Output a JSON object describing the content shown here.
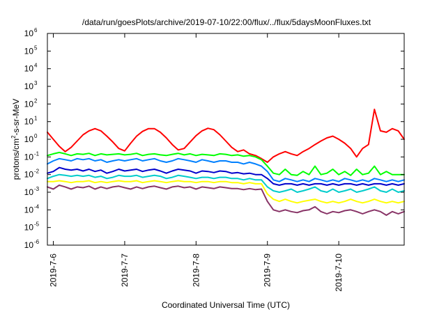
{
  "chart_data": {
    "type": "line",
    "title": "/data/run/goesPlots/archive/2019-07-10/22:00/flux/../flux/5daysMoonFluxes.txt",
    "xlabel": "Coordinated Universal Time (UTC)",
    "ylabel": "protons/cm2-s-sr-MeV",
    "ylabel_parts": {
      "pre": "protons/cm",
      "sup": "2",
      "post": "-s-sr-MeV"
    },
    "yscale": "log",
    "ylim": [
      1e-06,
      1000000.0
    ],
    "y_ticks": [
      {
        "base": "10",
        "exp": "-6",
        "value": 1e-06
      },
      {
        "base": "10",
        "exp": "-5",
        "value": 1e-05
      },
      {
        "base": "10",
        "exp": "-4",
        "value": 0.0001
      },
      {
        "base": "10",
        "exp": "-3",
        "value": 0.001
      },
      {
        "base": "10",
        "exp": "-2",
        "value": 0.01
      },
      {
        "base": "10",
        "exp": "-1",
        "value": 0.1
      },
      {
        "base": "10",
        "exp": "0",
        "value": 1
      },
      {
        "base": "10",
        "exp": "1",
        "value": 10
      },
      {
        "base": "10",
        "exp": "2",
        "value": 100
      },
      {
        "base": "10",
        "exp": "3",
        "value": 1000
      },
      {
        "base": "10",
        "exp": "4",
        "value": 10000
      },
      {
        "base": "10",
        "exp": "5",
        "value": 100000
      },
      {
        "base": "10",
        "exp": "6",
        "value": 1000000
      }
    ],
    "xlim": [
      "2019-07-05T22:00",
      "2019-07-10T22:00"
    ],
    "x_ticks": [
      {
        "label": "2019-7-6",
        "value": "2019-07-06T00:00"
      },
      {
        "label": "2019-7-7",
        "value": "2019-07-07T00:00"
      },
      {
        "label": "2019-7-8",
        "value": "2019-07-08T00:00"
      },
      {
        "label": "2019-7-9",
        "value": "2019-07-09T00:00"
      },
      {
        "label": "2019-7-10",
        "value": "2019-07-10T00:00"
      }
    ],
    "grid": false,
    "legend": "none",
    "x": [
      "2019-07-05T22:00",
      "2019-07-06T00:00",
      "2019-07-06T02:00",
      "2019-07-06T04:00",
      "2019-07-06T06:00",
      "2019-07-06T08:00",
      "2019-07-06T10:00",
      "2019-07-06T12:00",
      "2019-07-06T14:00",
      "2019-07-06T16:00",
      "2019-07-06T18:00",
      "2019-07-06T20:00",
      "2019-07-06T22:00",
      "2019-07-07T00:00",
      "2019-07-07T02:00",
      "2019-07-07T04:00",
      "2019-07-07T06:00",
      "2019-07-07T08:00",
      "2019-07-07T10:00",
      "2019-07-07T12:00",
      "2019-07-07T14:00",
      "2019-07-07T16:00",
      "2019-07-07T18:00",
      "2019-07-07T20:00",
      "2019-07-07T22:00",
      "2019-07-08T00:00",
      "2019-07-08T02:00",
      "2019-07-08T04:00",
      "2019-07-08T06:00",
      "2019-07-08T08:00",
      "2019-07-08T10:00",
      "2019-07-08T12:00",
      "2019-07-08T14:00",
      "2019-07-08T16:00",
      "2019-07-08T18:00",
      "2019-07-08T20:00",
      "2019-07-08T22:00",
      "2019-07-09T00:00",
      "2019-07-09T02:00",
      "2019-07-09T04:00",
      "2019-07-09T06:00",
      "2019-07-09T08:00",
      "2019-07-09T10:00",
      "2019-07-09T12:00",
      "2019-07-09T14:00",
      "2019-07-09T16:00",
      "2019-07-09T18:00",
      "2019-07-09T20:00",
      "2019-07-09T22:00",
      "2019-07-10T00:00",
      "2019-07-10T02:00",
      "2019-07-10T04:00",
      "2019-07-10T06:00",
      "2019-07-10T08:00",
      "2019-07-10T10:00",
      "2019-07-10T12:00",
      "2019-07-10T14:00",
      "2019-07-10T16:00",
      "2019-07-10T18:00",
      "2019-07-10T20:00",
      "2019-07-10T22:00"
    ],
    "series": [
      {
        "color": "#ff0000",
        "values": [
          2.5,
          1.0,
          0.4,
          0.2,
          0.35,
          0.8,
          1.8,
          3.0,
          4.0,
          3.0,
          1.5,
          0.7,
          0.3,
          0.22,
          0.6,
          1.5,
          2.8,
          4.0,
          4.0,
          2.5,
          1.2,
          0.5,
          0.25,
          0.3,
          0.7,
          1.6,
          3.0,
          4.2,
          3.5,
          1.8,
          0.8,
          0.35,
          0.2,
          0.25,
          0.15,
          0.12,
          0.08,
          0.05,
          0.1,
          0.15,
          0.2,
          0.15,
          0.12,
          0.2,
          0.3,
          0.5,
          0.8,
          1.2,
          1.5,
          1.0,
          0.6,
          0.3,
          0.1,
          0.3,
          0.5,
          50,
          3.0,
          2.5,
          4.0,
          3.0,
          1.0
        ]
      },
      {
        "color": "#00ff00",
        "values": [
          0.12,
          0.15,
          0.18,
          0.15,
          0.12,
          0.15,
          0.14,
          0.16,
          0.12,
          0.15,
          0.13,
          0.14,
          0.15,
          0.13,
          0.14,
          0.16,
          0.12,
          0.14,
          0.15,
          0.13,
          0.12,
          0.14,
          0.16,
          0.13,
          0.15,
          0.12,
          0.14,
          0.13,
          0.12,
          0.15,
          0.14,
          0.12,
          0.13,
          0.11,
          0.12,
          0.1,
          0.07,
          0.03,
          0.012,
          0.01,
          0.02,
          0.01,
          0.009,
          0.015,
          0.01,
          0.03,
          0.01,
          0.012,
          0.02,
          0.01,
          0.015,
          0.009,
          0.02,
          0.01,
          0.012,
          0.03,
          0.01,
          0.015,
          0.01,
          0.01,
          0.01
        ]
      },
      {
        "color": "#0080ff",
        "values": [
          0.04,
          0.06,
          0.08,
          0.07,
          0.06,
          0.08,
          0.07,
          0.08,
          0.06,
          0.07,
          0.05,
          0.06,
          0.07,
          0.06,
          0.07,
          0.08,
          0.06,
          0.07,
          0.08,
          0.06,
          0.05,
          0.06,
          0.08,
          0.07,
          0.06,
          0.05,
          0.07,
          0.06,
          0.05,
          0.06,
          0.06,
          0.05,
          0.05,
          0.04,
          0.05,
          0.04,
          0.03,
          0.015,
          0.005,
          0.004,
          0.006,
          0.005,
          0.004,
          0.005,
          0.004,
          0.006,
          0.005,
          0.004,
          0.005,
          0.004,
          0.006,
          0.005,
          0.004,
          0.005,
          0.004,
          0.006,
          0.005,
          0.004,
          0.005,
          0.004,
          0.005
        ]
      },
      {
        "color": "#0000cc",
        "values": [
          0.012,
          0.015,
          0.025,
          0.02,
          0.018,
          0.02,
          0.016,
          0.02,
          0.015,
          0.018,
          0.012,
          0.015,
          0.02,
          0.016,
          0.018,
          0.02,
          0.015,
          0.018,
          0.02,
          0.016,
          0.012,
          0.016,
          0.02,
          0.018,
          0.016,
          0.012,
          0.016,
          0.015,
          0.013,
          0.016,
          0.015,
          0.012,
          0.013,
          0.011,
          0.012,
          0.01,
          0.01,
          0.006,
          0.003,
          0.0025,
          0.003,
          0.003,
          0.0025,
          0.003,
          0.0025,
          0.003,
          0.003,
          0.0025,
          0.003,
          0.0025,
          0.003,
          0.003,
          0.0025,
          0.003,
          0.0025,
          0.003,
          0.003,
          0.0025,
          0.003,
          0.0025,
          0.003
        ]
      },
      {
        "color": "#00cccc",
        "values": [
          0.006,
          0.008,
          0.01,
          0.009,
          0.008,
          0.009,
          0.008,
          0.009,
          0.007,
          0.008,
          0.006,
          0.007,
          0.009,
          0.008,
          0.008,
          0.009,
          0.007,
          0.008,
          0.009,
          0.008,
          0.006,
          0.007,
          0.009,
          0.008,
          0.007,
          0.006,
          0.007,
          0.007,
          0.006,
          0.007,
          0.007,
          0.006,
          0.006,
          0.005,
          0.006,
          0.005,
          0.005,
          0.002,
          0.0012,
          0.001,
          0.0012,
          0.0015,
          0.001,
          0.0012,
          0.0015,
          0.002,
          0.0012,
          0.001,
          0.0015,
          0.001,
          0.0012,
          0.0015,
          0.001,
          0.0012,
          0.0015,
          0.002,
          0.0012,
          0.001,
          0.0015,
          0.001,
          0.0012
        ]
      },
      {
        "color": "#ffff00",
        "values": [
          0.004,
          0.004,
          0.0045,
          0.004,
          0.0035,
          0.004,
          0.004,
          0.0045,
          0.0035,
          0.004,
          0.0035,
          0.004,
          0.0045,
          0.004,
          0.004,
          0.0045,
          0.0035,
          0.004,
          0.0045,
          0.004,
          0.0035,
          0.004,
          0.0045,
          0.004,
          0.004,
          0.0035,
          0.004,
          0.004,
          0.0035,
          0.004,
          0.004,
          0.0035,
          0.0035,
          0.003,
          0.0035,
          0.003,
          0.003,
          0.0008,
          0.0004,
          0.0003,
          0.0004,
          0.0003,
          0.00025,
          0.0003,
          0.00035,
          0.0004,
          0.0003,
          0.00025,
          0.0003,
          0.00025,
          0.0003,
          0.0004,
          0.0003,
          0.00025,
          0.0003,
          0.0004,
          0.0003,
          0.00025,
          0.0003,
          0.00025,
          0.0003
        ]
      },
      {
        "color": "#883366",
        "values": [
          0.002,
          0.0015,
          0.0025,
          0.002,
          0.0015,
          0.002,
          0.0018,
          0.0022,
          0.0015,
          0.002,
          0.0016,
          0.002,
          0.0022,
          0.0018,
          0.0015,
          0.002,
          0.0016,
          0.002,
          0.0022,
          0.0018,
          0.0015,
          0.002,
          0.0022,
          0.0018,
          0.002,
          0.0015,
          0.002,
          0.0018,
          0.0016,
          0.002,
          0.0018,
          0.0016,
          0.0016,
          0.0014,
          0.0016,
          0.0014,
          0.0015,
          0.0003,
          0.0001,
          8e-05,
          0.0001,
          8e-05,
          7e-05,
          9e-05,
          0.0001,
          0.00015,
          8e-05,
          6e-05,
          8e-05,
          7e-05,
          9e-05,
          0.0001,
          8e-05,
          6e-05,
          8e-05,
          0.0001,
          8e-05,
          5e-05,
          8e-05,
          6e-05,
          8e-05
        ]
      }
    ]
  }
}
